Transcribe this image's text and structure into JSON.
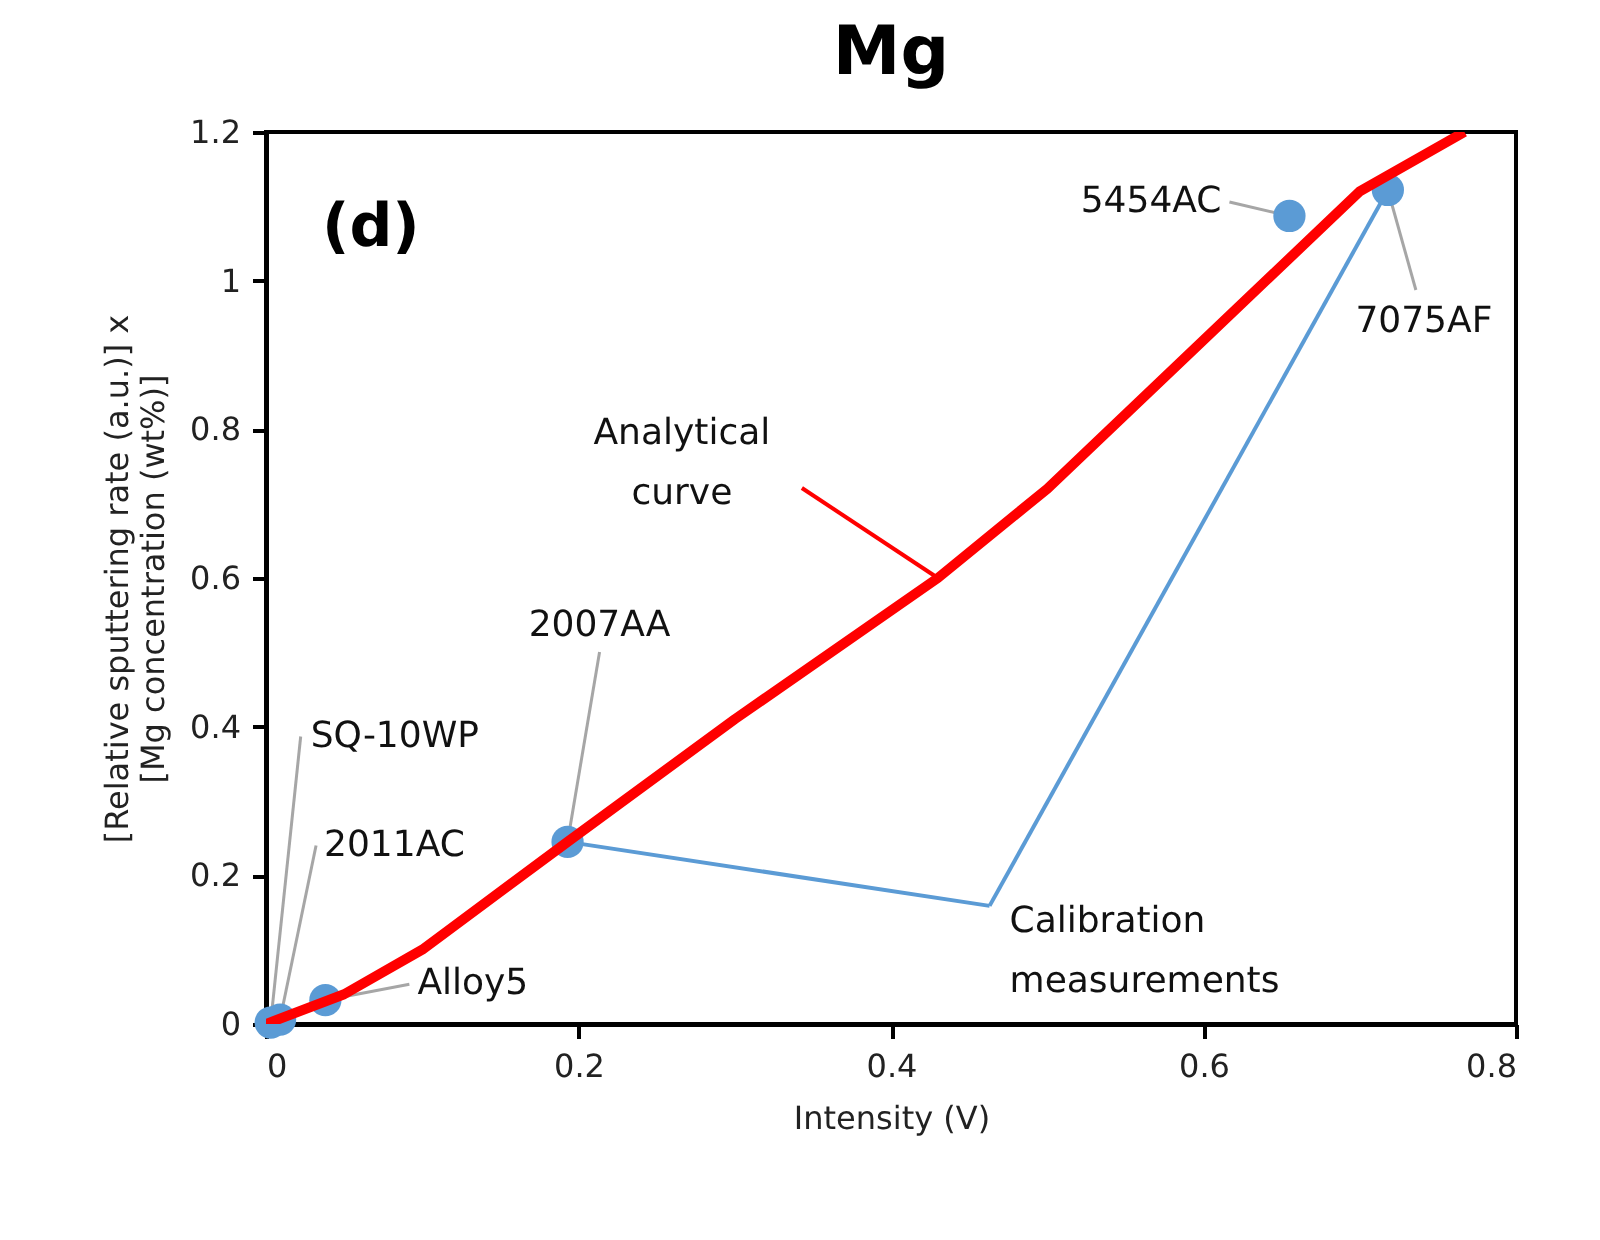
{
  "chart_data": {
    "type": "scatter",
    "title": "Mg",
    "xlabel": "Intensity (V)",
    "ylabel": "[Relative sputtering rate (a.u.)] x [Mg concentration (wt%)]",
    "xlim": [
      0,
      0.8
    ],
    "xticks": [
      0,
      0.2,
      0.4,
      0.6,
      0.8
    ],
    "ylim": [
      0,
      1.2
    ],
    "yticks": [
      0,
      0.2,
      0.4,
      0.6,
      0.8,
      1,
      1.2
    ],
    "series": [
      {
        "color": "#5b9bd5",
        "marker": "circle",
        "x": [
          0.003,
          0.009,
          0.038,
          0.193,
          0.655,
          0.718
        ],
        "values": [
          0.002,
          0.006,
          0.032,
          0.245,
          1.087,
          1.122
        ]
      },
      {
        "type": "line",
        "color": "#ff0000",
        "marker": "none",
        "line_style": "solid",
        "x": [
          0,
          0.05,
          0.1,
          0.193,
          0.3,
          0.43,
          0.5,
          0.6,
          0.7,
          0.767
        ],
        "values": [
          0,
          0.04,
          0.1,
          0.245,
          0.41,
          0.6,
          0.72,
          0.92,
          1.12,
          1.2
        ]
      }
    ],
    "annotations": [
      "(d)",
      {
        "text": "SQ-10WP",
        "x": 0.003,
        "y": 0.002
      },
      {
        "text": "2011AC",
        "x": 0.009,
        "y": 0.006
      },
      {
        "text": "Alloy5",
        "x": 0.038,
        "y": 0.032
      },
      {
        "text": "2007AA",
        "x": 0.193,
        "y": 0.245
      },
      {
        "text": "5454AC",
        "x": 0.655,
        "y": 1.087
      },
      {
        "text": "7075AF",
        "x": 0.718,
        "y": 1.122
      },
      {
        "text": "Analytical curve",
        "x": 0.43,
        "y": 0.6
      },
      {
        "text": "Calibration measurements",
        "x": 0.193,
        "y": 0.245
      }
    ]
  }
}
